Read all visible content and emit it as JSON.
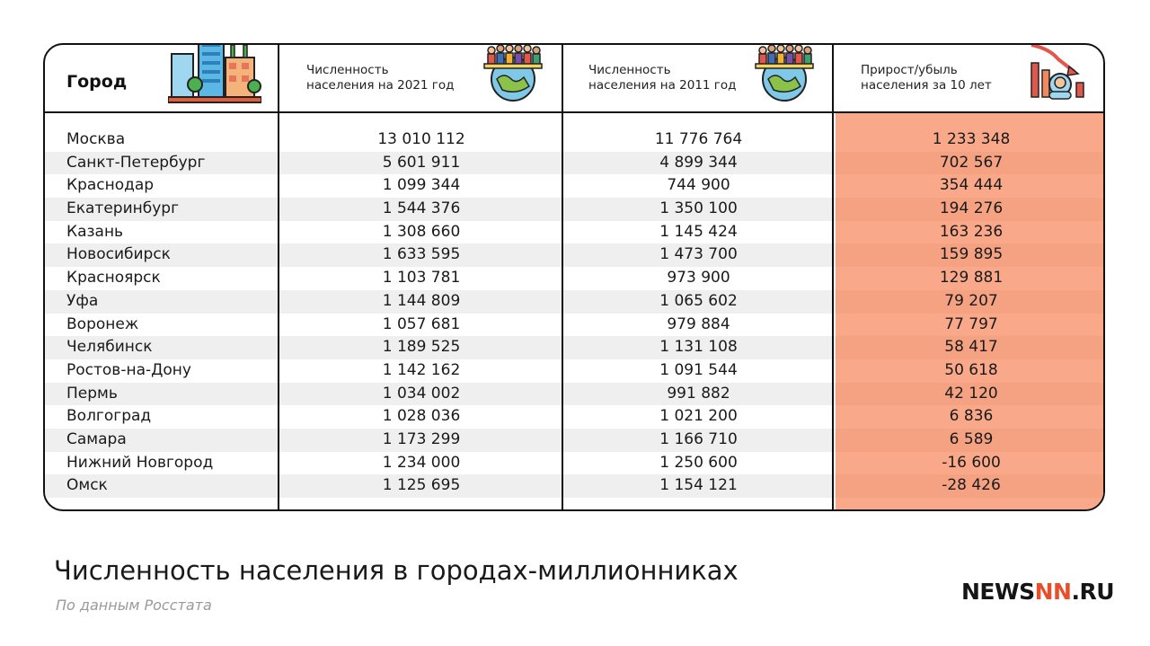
{
  "table": {
    "headers": {
      "city": "Город",
      "pop_2021": "Численность\nнаселения на 2021 год",
      "pop_2011": "Численность\nнаселения на 2011 год",
      "diff": "Прирост/убыль\nнаселения за 10 лет"
    },
    "rows": [
      {
        "city": "Москва",
        "pop_2021": "13 010 112",
        "pop_2011": "11 776 764",
        "diff": "1 233 348"
      },
      {
        "city": "Санкт-Петербург",
        "pop_2021": "5 601 911",
        "pop_2011": "4 899 344",
        "diff": "702 567"
      },
      {
        "city": "Краснодар",
        "pop_2021": "1 099 344",
        "pop_2011": "744 900",
        "diff": "354 444"
      },
      {
        "city": "Екатеринбург",
        "pop_2021": "1 544 376",
        "pop_2011": "1 350 100",
        "diff": "194 276"
      },
      {
        "city": "Казань",
        "pop_2021": "1 308 660",
        "pop_2011": "1 145 424",
        "diff": "163 236"
      },
      {
        "city": "Новосибирск",
        "pop_2021": "1 633 595",
        "pop_2011": "1 473 700",
        "diff": "159 895"
      },
      {
        "city": "Красноярск",
        "pop_2021": "1 103 781",
        "pop_2011": "973 900",
        "diff": "129 881"
      },
      {
        "city": "Уфа",
        "pop_2021": "1 144 809",
        "pop_2011": "1 065 602",
        "diff": "79 207"
      },
      {
        "city": "Воронеж",
        "pop_2021": "1 057 681",
        "pop_2011": "979 884",
        "diff": "77 797"
      },
      {
        "city": "Челябинск",
        "pop_2021": "1 189 525",
        "pop_2011": "1 131 108",
        "diff": "58 417"
      },
      {
        "city": "Ростов-на-Дону",
        "pop_2021": "1 142 162",
        "pop_2011": "1 091 544",
        "diff": "50 618"
      },
      {
        "city": "Пермь",
        "pop_2021": "1 034 002",
        "pop_2011": "991 882",
        "diff": "42 120"
      },
      {
        "city": "Волгоград",
        "pop_2021": "1 028 036",
        "pop_2011": "1 021 200",
        "diff": "6 836"
      },
      {
        "city": "Самара",
        "pop_2021": "1 173 299",
        "pop_2011": "1 166 710",
        "diff": "6 589"
      },
      {
        "city": "Нижний Новгород",
        "pop_2021": "1 234 000",
        "pop_2011": "1 250 600",
        "diff": "-16 600"
      },
      {
        "city": "Омск",
        "pop_2021": "1 125 695",
        "pop_2011": "1 154 121",
        "diff": "-28 426"
      }
    ]
  },
  "footer": {
    "title": "Численность населения в городах-миллионниках",
    "source": "По данным Росстата",
    "logo_prefix": "NEWS",
    "logo_mark": "NN",
    "logo_suffix": ".RU"
  },
  "icons": {
    "city": "city-buildings-icon",
    "pop_2021": "crowd-globe-icon",
    "pop_2011": "crowd-globe-icon",
    "diff": "declining-chart-baby-icon"
  },
  "colors": {
    "highlight": "#f9a98a",
    "highlight_stripe": "#f5a283",
    "stripe": "#efefef",
    "logo_accent": "#e84e2a"
  }
}
